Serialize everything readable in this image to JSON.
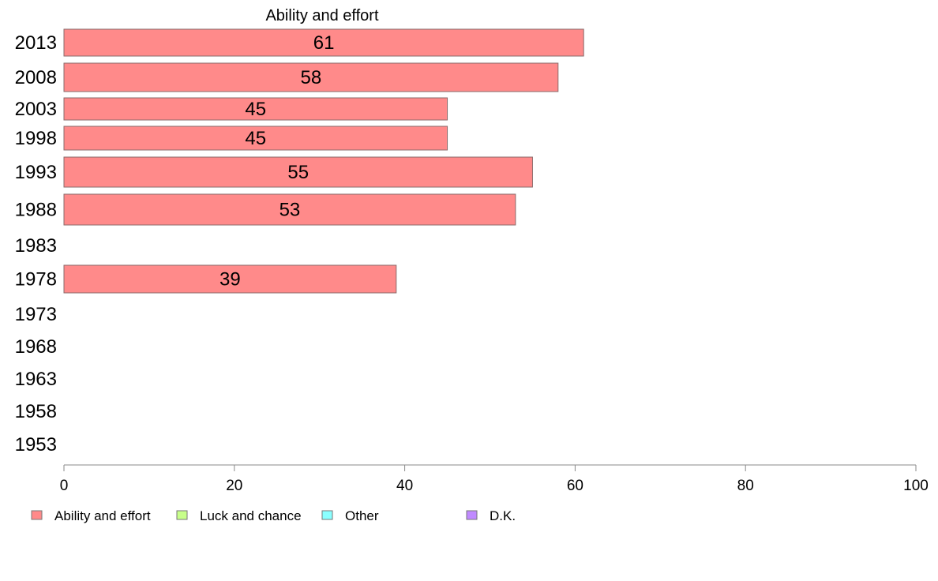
{
  "chart_data": {
    "type": "bar",
    "orientation": "horizontal",
    "title": "Ability and effort",
    "categories": [
      "2013",
      "2008",
      "2003",
      "1998",
      "1993",
      "1988",
      "1983",
      "1978",
      "1973",
      "1968",
      "1963",
      "1958",
      "1953"
    ],
    "series": [
      {
        "name": "Ability and effort",
        "color": "#ff8a8a",
        "values": [
          61,
          58,
          45,
          45,
          55,
          53,
          null,
          39,
          null,
          null,
          null,
          null,
          null
        ],
        "value_labels": [
          "61",
          "58",
          "45",
          "45",
          "55",
          "53",
          "",
          "39",
          "",
          "",
          "",
          "",
          ""
        ]
      }
    ],
    "xlim": [
      0,
      100
    ],
    "xticks": [
      "0",
      "20",
      "40",
      "60",
      "80",
      "100"
    ],
    "grid": false,
    "legend": {
      "placement": "bottom",
      "items": [
        {
          "label": "Ability and effort",
          "color": "#ff8a8a"
        },
        {
          "label": "Luck and chance",
          "color": "#c8ff8a"
        },
        {
          "label": "Other",
          "color": "#8affff"
        },
        {
          "label": "D.K.",
          "color": "#c08aff"
        }
      ]
    }
  }
}
